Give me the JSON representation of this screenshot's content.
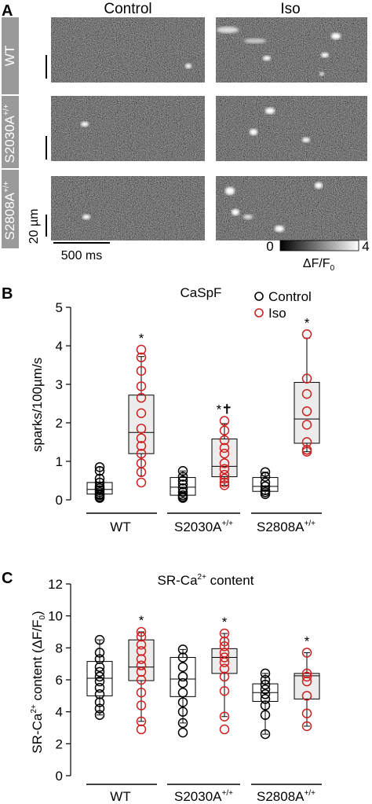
{
  "panel_a": {
    "letter": "A",
    "col_labels": [
      "Control",
      "Iso"
    ],
    "row_labels": [
      "WT",
      "S2030A",
      "S2808A"
    ],
    "genotype_suffix": "+/+",
    "scale_y": "20 µm",
    "scale_x": "500 ms",
    "colorbar": {
      "min": "0",
      "max": "4",
      "label": "ΔF/F",
      "label_sub": "0"
    }
  },
  "chart_data": [
    {
      "type": "box",
      "panel_letter": "B",
      "title": "CaSpF",
      "xlabel": "",
      "ylabel": "sparks/100µm/s",
      "ylim": [
        0,
        5
      ],
      "yticks": [
        0,
        1,
        2,
        3,
        4,
        5
      ],
      "groups": [
        {
          "label": "WT",
          "sup": "",
          "underline": true
        },
        {
          "label": "S2030A",
          "sup": "+/+",
          "underline": true
        },
        {
          "label": "S2808A",
          "sup": "+/+",
          "underline": true
        }
      ],
      "legend": {
        "position": "top-right",
        "entries": [
          {
            "name": "Control",
            "color": "#000000"
          },
          {
            "name": "Iso",
            "color": "#cc2222"
          }
        ]
      },
      "series": [
        {
          "name": "Control",
          "color": "#000000",
          "fill": "#ffffff",
          "boxes": [
            {
              "group": 0,
              "whisker_low": 0.05,
              "q1": 0.15,
              "median": 0.27,
              "q3": 0.45,
              "whisker_high": 0.85,
              "points": [
                0.85,
                0.75,
                0.55,
                0.45,
                0.35,
                0.3,
                0.25,
                0.2,
                0.15,
                0.12,
                0.08,
                0.05
              ],
              "annot": ""
            },
            {
              "group": 1,
              "whisker_low": 0.05,
              "q1": 0.12,
              "median": 0.33,
              "q3": 0.58,
              "whisker_high": 0.75,
              "points": [
                0.75,
                0.6,
                0.5,
                0.4,
                0.3,
                0.2,
                0.12,
                0.08,
                0.05
              ],
              "annot": ""
            },
            {
              "group": 2,
              "whisker_low": 0.15,
              "q1": 0.22,
              "median": 0.35,
              "q3": 0.58,
              "whisker_high": 0.72,
              "points": [
                0.72,
                0.6,
                0.45,
                0.35,
                0.25,
                0.2,
                0.15
              ],
              "annot": ""
            }
          ]
        },
        {
          "name": "Iso",
          "color": "#cc2222",
          "fill": "#ececec",
          "boxes": [
            {
              "group": 0,
              "whisker_low": 0.62,
              "q1": 1.2,
              "median": 1.75,
              "q3": 2.72,
              "whisker_high": 3.72,
              "points": [
                3.9,
                3.7,
                3.35,
                2.95,
                2.65,
                2.25,
                1.85,
                1.6,
                1.4,
                1.2,
                0.95,
                0.72,
                0.45
              ],
              "annot": "*"
            },
            {
              "group": 1,
              "whisker_low": 0.38,
              "q1": 0.6,
              "median": 0.87,
              "q3": 1.58,
              "whisker_high": 1.98,
              "points": [
                2.05,
                1.8,
                1.55,
                1.35,
                1.2,
                0.95,
                0.8,
                0.65,
                0.55,
                0.45,
                0.38
              ],
              "annot": "*✝"
            },
            {
              "group": 2,
              "whisker_low": 1.25,
              "q1": 1.47,
              "median": 2.1,
              "q3": 3.05,
              "whisker_high": 4.2,
              "points": [
                4.3,
                3.15,
                2.75,
                2.3,
                1.95,
                1.5,
                1.3,
                1.25
              ],
              "annot": "*"
            }
          ]
        }
      ]
    },
    {
      "type": "box",
      "panel_letter": "C",
      "title": "SR-Ca",
      "title_sup": "2+",
      "title_rest": " content",
      "xlabel": "",
      "ylabel": "SR-Ca",
      "ylabel_sup": "2+",
      "ylabel_rest": " content (ΔF/F",
      "ylabel_sub": "0",
      "ylabel_end": ")",
      "ylim": [
        0,
        12
      ],
      "yticks": [
        0,
        2,
        4,
        6,
        8,
        10,
        12
      ],
      "groups": [
        {
          "label": "WT",
          "sup": "",
          "underline": true
        },
        {
          "label": "S2030A",
          "sup": "+/+",
          "underline": true
        },
        {
          "label": "S2808A",
          "sup": "+/+",
          "underline": true
        }
      ],
      "series": [
        {
          "name": "Control",
          "color": "#000000",
          "fill": "#ffffff",
          "boxes": [
            {
              "group": 0,
              "whisker_low": 3.8,
              "q1": 5.0,
              "median": 6.1,
              "q3": 7.15,
              "whisker_high": 8.5,
              "points": [
                8.5,
                7.7,
                7.3,
                6.8,
                6.5,
                6.2,
                5.9,
                5.5,
                5.1,
                4.6,
                4.2,
                3.8
              ],
              "annot": ""
            },
            {
              "group": 1,
              "whisker_low": 3.3,
              "q1": 4.95,
              "median": 6.05,
              "q3": 7.4,
              "whisker_high": 7.9,
              "points": [
                7.9,
                7.4,
                6.8,
                6.2,
                5.8,
                5.2,
                4.6,
                4.0,
                3.3,
                2.7
              ],
              "annot": ""
            },
            {
              "group": 2,
              "whisker_low": 2.6,
              "q1": 4.65,
              "median": 5.2,
              "q3": 5.75,
              "whisker_high": 6.4,
              "points": [
                6.4,
                6.0,
                5.7,
                5.4,
                5.1,
                4.8,
                4.4,
                3.8,
                2.6
              ],
              "annot": ""
            }
          ]
        },
        {
          "name": "Iso",
          "color": "#cc2222",
          "fill": "#ececec",
          "boxes": [
            {
              "group": 0,
              "whisker_low": 3.4,
              "q1": 5.95,
              "median": 6.8,
              "q3": 8.5,
              "whisker_high": 9.0,
              "points": [
                9.0,
                8.7,
                8.2,
                7.8,
                7.3,
                6.9,
                6.5,
                6.0,
                5.2,
                4.4,
                3.4,
                2.9
              ],
              "annot": "*"
            },
            {
              "group": 1,
              "whisker_low": 3.7,
              "q1": 6.4,
              "median": 7.4,
              "q3": 7.95,
              "whisker_high": 8.9,
              "points": [
                8.9,
                8.4,
                8.1,
                7.7,
                7.4,
                7.1,
                6.7,
                6.2,
                5.3,
                3.7,
                2.9
              ],
              "annot": "*"
            },
            {
              "group": 2,
              "whisker_low": 3.1,
              "q1": 4.8,
              "median": 6.25,
              "q3": 6.4,
              "whisker_high": 7.7,
              "points": [
                7.7,
                6.4,
                6.2,
                5.9,
                5.0,
                3.9,
                3.1
              ],
              "annot": "*"
            }
          ]
        }
      ]
    }
  ]
}
